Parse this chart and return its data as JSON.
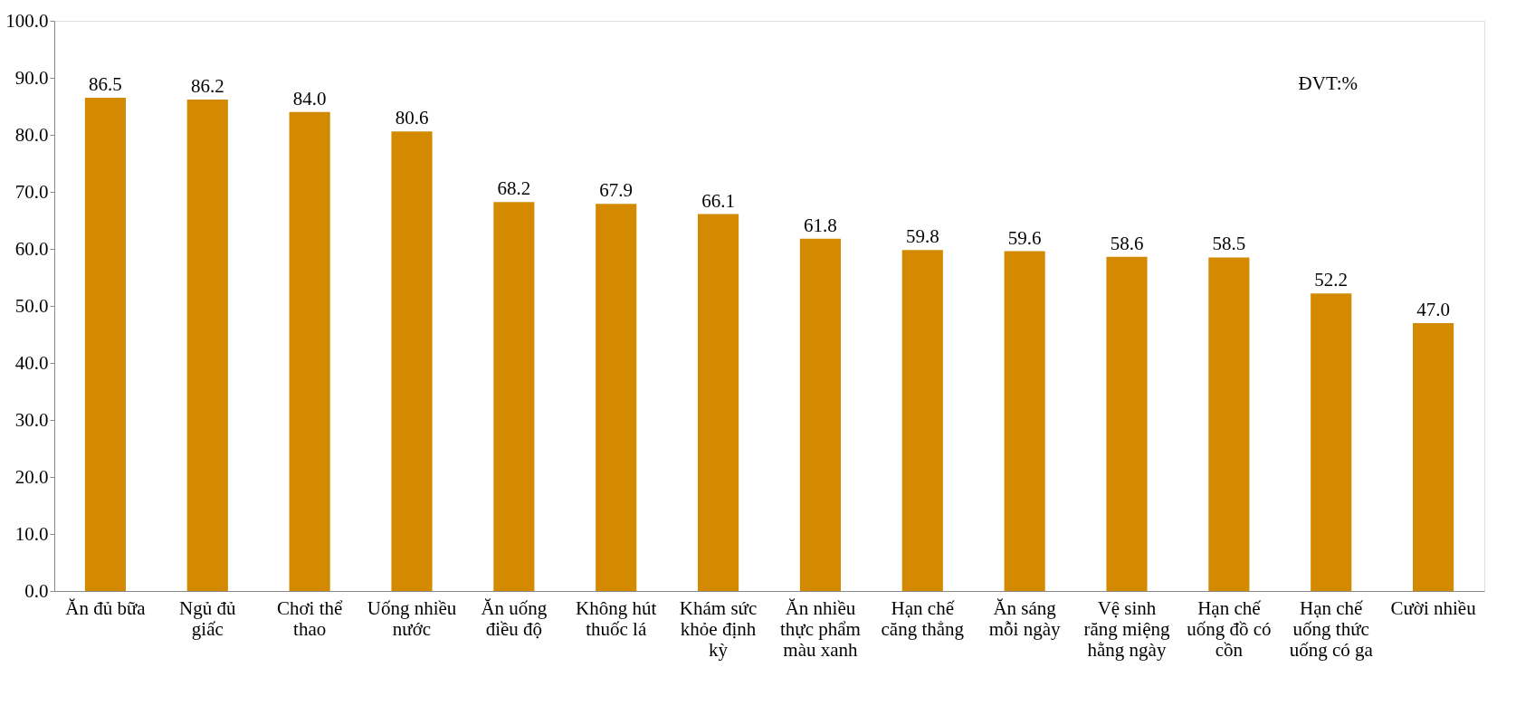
{
  "chart_data": {
    "type": "bar",
    "categories": [
      "Ăn đủ bữa",
      "Ngủ đủ giấc",
      "Chơi thể thao",
      "Uống nhiều nước",
      "Ăn uống điều độ",
      "Không hút thuốc lá",
      "Khám sức khỏe định kỳ",
      "Ăn nhiều thực phẩm màu xanh",
      "Hạn chế căng thẳng",
      "Ăn sáng mỗi ngày",
      "Vệ sinh răng miệng hằng ngày",
      "Hạn chế uống đồ có cồn",
      "Hạn chế uống thức uống có ga",
      "Cười nhiều"
    ],
    "values": [
      86.5,
      86.2,
      84.0,
      80.6,
      68.2,
      67.9,
      66.1,
      61.8,
      59.8,
      59.6,
      58.6,
      58.5,
      52.2,
      47.0
    ],
    "color": "#d48a00",
    "ylim": [
      0,
      100
    ],
    "yticks": [
      {
        "value": 0,
        "label": "0.0"
      },
      {
        "value": 10,
        "label": "10.0"
      },
      {
        "value": 20,
        "label": "20.0"
      },
      {
        "value": 30,
        "label": "30.0"
      },
      {
        "value": 40,
        "label": "40.0"
      },
      {
        "value": 50,
        "label": "50.0"
      },
      {
        "value": 60,
        "label": "60.0"
      },
      {
        "value": 70,
        "label": "70.0"
      },
      {
        "value": 80,
        "label": "80.0"
      },
      {
        "value": 90,
        "label": "90.0"
      },
      {
        "value": 100,
        "label": "100.0"
      }
    ],
    "value_labels": [
      "86.5",
      "86.2",
      "84.0",
      "80.6",
      "68.2",
      "67.9",
      "66.1",
      "61.8",
      "59.8",
      "59.6",
      "58.6",
      "58.5",
      "52.2",
      "47.0"
    ],
    "grid": false,
    "annotations": [
      "ĐVT:%"
    ]
  }
}
